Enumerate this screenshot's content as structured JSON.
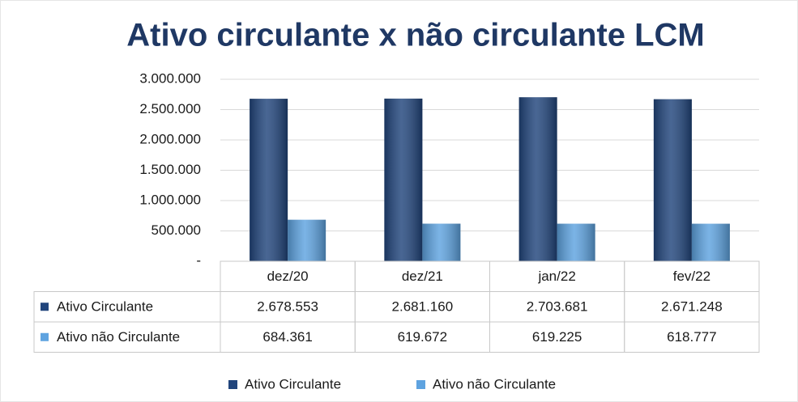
{
  "chart_data": {
    "type": "bar",
    "title": "Ativo circulante x não circulante LCM",
    "categories": [
      "dez/20",
      "dez/21",
      "jan/22",
      "fev/22"
    ],
    "series": [
      {
        "name": "Ativo Circulante",
        "color": "#21457c",
        "values": [
          2678553,
          2681160,
          2703681,
          2671248
        ],
        "value_labels": [
          "2.678.553",
          "2.681.160",
          "2.703.681",
          "2.671.248"
        ]
      },
      {
        "name": "Ativo não Circulante",
        "color": "#5ea3e0",
        "values": [
          684361,
          619672,
          619225,
          618777
        ],
        "value_labels": [
          "684.361",
          "619.672",
          "619.225",
          "618.777"
        ]
      }
    ],
    "ylim": [
      0,
      3000000
    ],
    "yticks": [
      {
        "value": 0,
        "label": "-"
      },
      {
        "value": 500000,
        "label": "500.000"
      },
      {
        "value": 1000000,
        "label": "1.000.000"
      },
      {
        "value": 1500000,
        "label": "1.500.000"
      },
      {
        "value": 2000000,
        "label": "2.000.000"
      },
      {
        "value": 2500000,
        "label": "2.500.000"
      },
      {
        "value": 3000000,
        "label": "3.000.000"
      }
    ],
    "grid": true,
    "data_table": true,
    "legend": "bottom"
  }
}
